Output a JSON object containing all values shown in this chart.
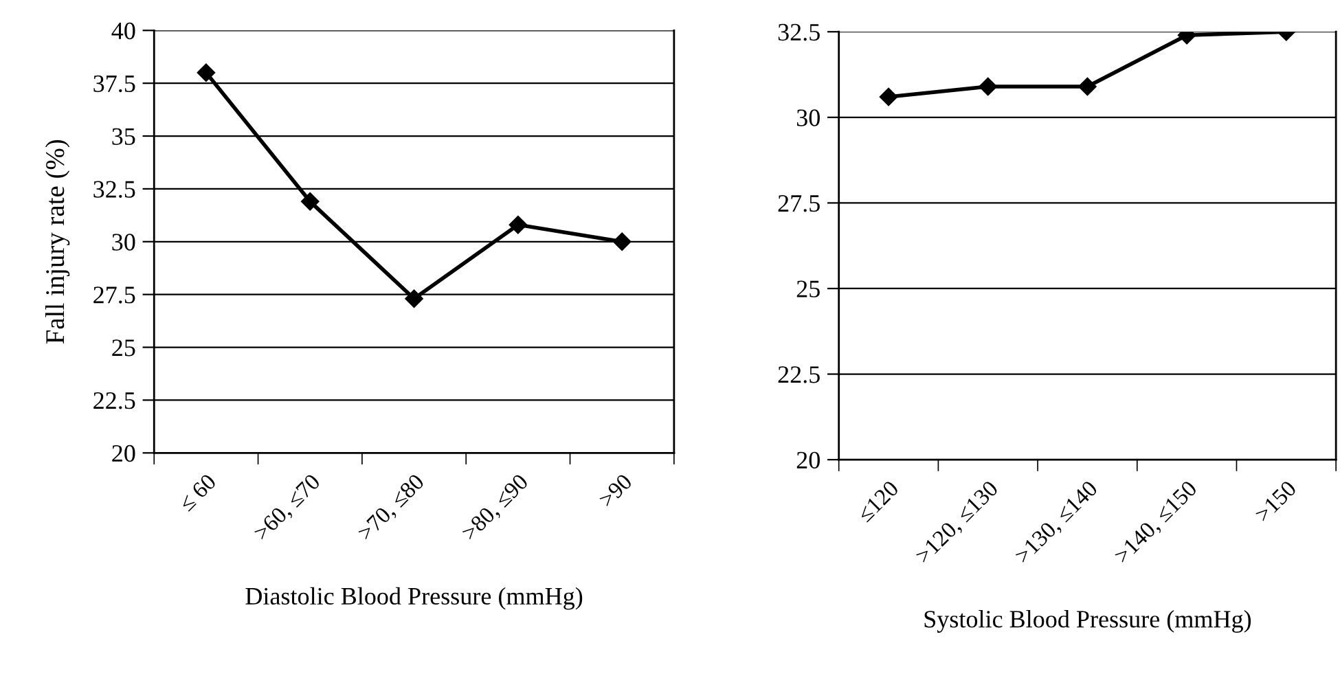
{
  "chart_data": [
    {
      "type": "line",
      "ylabel": "Fall injury rate (%)",
      "xlabel": "Diastolic Blood Pressure (mmHg)",
      "categories": [
        "≤ 60",
        ">60, ≤70",
        ">70, ≤80",
        ">80, ≤90",
        ">90"
      ],
      "series": [
        {
          "color": "#000000",
          "values": [
            38,
            31.9,
            27.3,
            30.8,
            30
          ]
        }
      ],
      "ylim": [
        20,
        40
      ],
      "yticks": [
        20,
        22.5,
        25,
        27.5,
        30,
        32.5,
        35,
        37.5,
        40
      ],
      "grid": "y",
      "marker": "diamond",
      "line_style": "solid",
      "legend": false
    },
    {
      "type": "line",
      "xlabel": "Systolic Blood Pressure (mmHg)",
      "categories": [
        "≤120",
        ">120, ≤130",
        ">130, ≤140",
        ">140, ≤150",
        ">150"
      ],
      "series": [
        {
          "color": "#000000",
          "values": [
            30.6,
            30.9,
            30.9,
            32.4,
            32.5
          ]
        }
      ],
      "ylim": [
        20,
        32.5
      ],
      "yticks": [
        20,
        22.5,
        25,
        27.5,
        30,
        32.5
      ],
      "grid": "y",
      "marker": "diamond",
      "line_style": "solid",
      "legend": false
    }
  ]
}
